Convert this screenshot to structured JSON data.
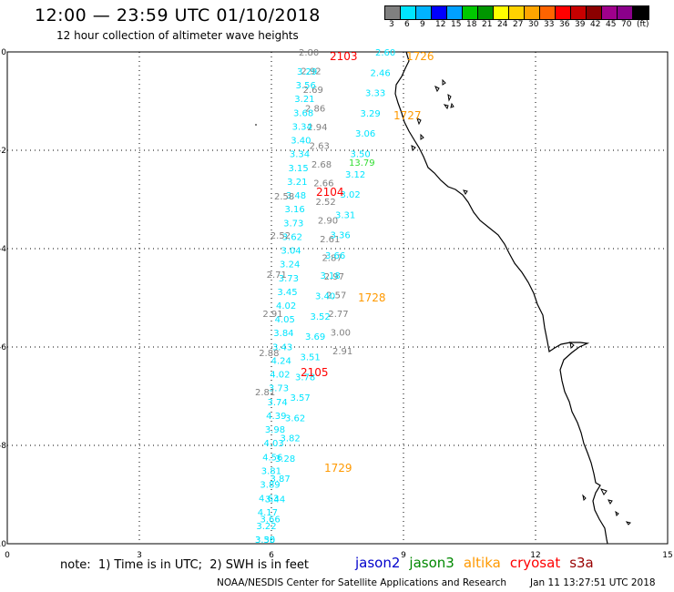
{
  "header": {
    "title": "12:00 — 23:59 UTC 01/10/2018",
    "subtitle": "12 hour collection of altimeter wave heights"
  },
  "colorbar": {
    "colors": [
      "#808080",
      "#00e5ff",
      "#00b4ff",
      "#0000ff",
      "#00a0ff",
      "#00c800",
      "#009600",
      "#ffff00",
      "#ffd200",
      "#ffa500",
      "#ff6400",
      "#ff0000",
      "#c80000",
      "#8b0000",
      "#a0008c",
      "#8b008b",
      "#000000"
    ],
    "labels": [
      "3",
      "6",
      "9",
      "12",
      "15",
      "18",
      "21",
      "24",
      "27",
      "30",
      "33",
      "36",
      "39",
      "42",
      "45",
      "70",
      "(ft)"
    ]
  },
  "axes": {
    "x_ticks": [
      "0",
      "3",
      "6",
      "9",
      "12",
      "15"
    ],
    "y_ticks": [
      "0",
      "-2",
      "-4",
      "-6",
      "-8",
      "-10"
    ]
  },
  "tracks": [
    {
      "color": "#808080",
      "values": [
        "2.80",
        "2.92",
        "2.69",
        "2.86",
        "2.94",
        "2.63",
        "2.68",
        "2.66",
        "2.52",
        "2.90",
        "2.61",
        "2.87",
        "2.97",
        "2.57",
        "2.77",
        "3.00",
        "2.91"
      ]
    },
    {
      "color": "#00e5ff",
      "values": [
        "3.29",
        "3.56",
        "3.21",
        "3.68",
        "3.34",
        "3.40",
        "3.34",
        "3.15",
        "3.21",
        "3.48",
        "3.16",
        "3.73",
        "3.62",
        "3.04",
        "3.24",
        "3.73",
        "3.45",
        "4.02",
        "4.05",
        "3.84",
        "3.43",
        "4.24",
        "4.02",
        "3.73",
        "3.74",
        "4.39",
        "3.98",
        "4.03",
        "4.56",
        "3.81",
        "3.89",
        "4.63",
        "4.17",
        "3.22",
        "3.55"
      ]
    },
    {
      "color": "#808080",
      "values": [
        "2.58",
        "2.52",
        "2.71",
        "2.91",
        "2.88",
        "2.81"
      ]
    },
    {
      "color": "#00e5ff",
      "values": [
        "2.60",
        "2.46",
        "3.33",
        "3.29",
        "3.06",
        "3.50",
        "3.12",
        "3.02",
        "3.31",
        "3.36",
        "3.66",
        "3.18",
        "3.40",
        "3.52",
        "3.69",
        "3.51",
        "3.78",
        "3.57",
        "3.62",
        "3.82",
        "3.28",
        "3.87",
        "3.44",
        "3.66",
        "3.30"
      ]
    },
    {
      "color": "#33dd33",
      "values": [
        "13.79"
      ]
    }
  ],
  "passes": [
    {
      "label": "2103",
      "color": "#ff0000"
    },
    {
      "label": "1726",
      "color": "#ff9900"
    },
    {
      "label": "1727",
      "color": "#ff9900"
    },
    {
      "label": "2104",
      "color": "#ff0000"
    },
    {
      "label": "1728",
      "color": "#ff9900"
    },
    {
      "label": "2105",
      "color": "#ff0000"
    },
    {
      "label": "1729",
      "color": "#ff9900"
    }
  ],
  "footer": {
    "note": "note:  1) Time is in UTC;  2) SWH is in feet",
    "satellites": [
      {
        "name": "jason2",
        "color": "#0000cc"
      },
      {
        "name": "jason3",
        "color": "#008800"
      },
      {
        "name": "altika",
        "color": "#ff9900"
      },
      {
        "name": "cryosat",
        "color": "#ff0000"
      },
      {
        "name": "s3a",
        "color": "#990000"
      }
    ],
    "credit": "NOAA/NESDIS Center for Satellite Applications and Research",
    "timestamp": "Jan 11 13:27:51 UTC 2018"
  }
}
